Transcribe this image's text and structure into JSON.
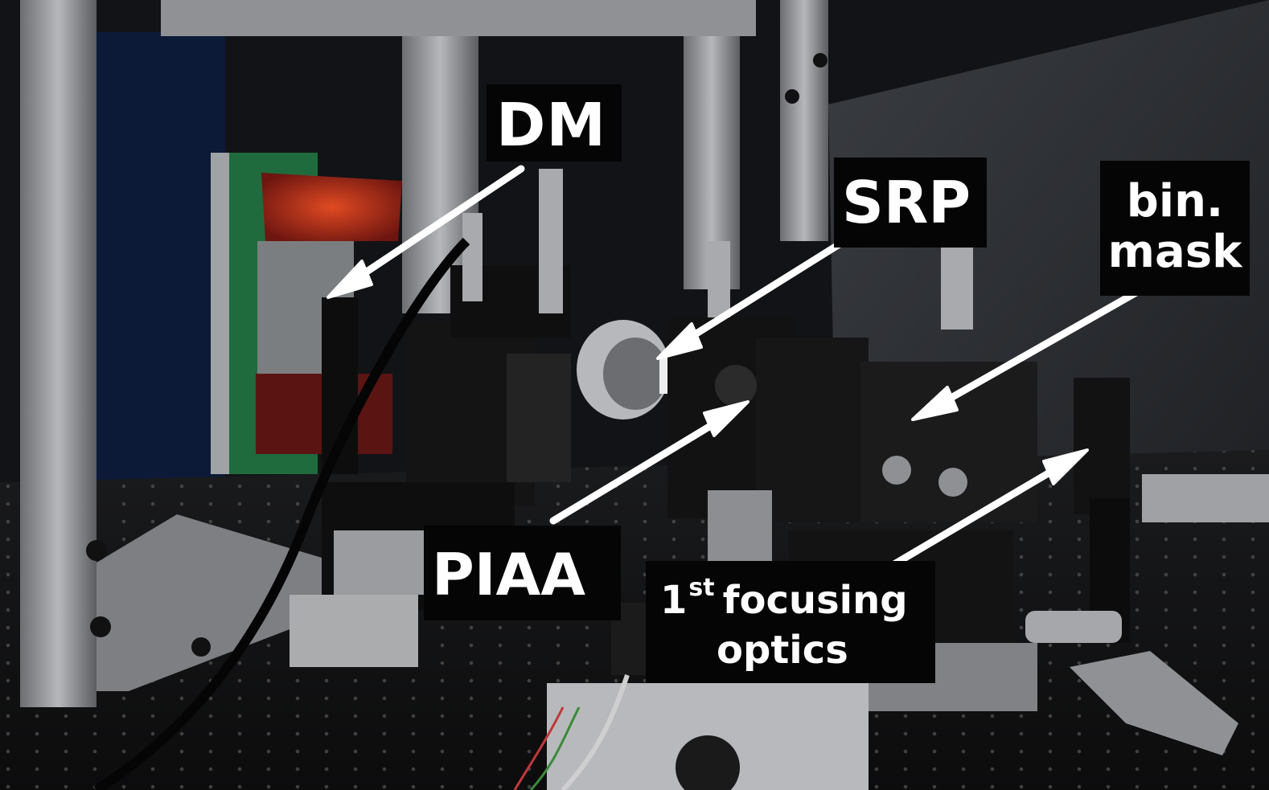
{
  "labels": {
    "dm": "DM",
    "srp": "SRP",
    "bin_mask": "bin.\nmask",
    "piaa": "PIAA",
    "focusing_prefix": "1",
    "focusing_sup": "st",
    "focusing_line1": "focusing",
    "focusing_line2": "optics"
  },
  "colors": {
    "label_background": "#050505",
    "label_text": "#ffffff",
    "arrow": "#ffffff"
  }
}
